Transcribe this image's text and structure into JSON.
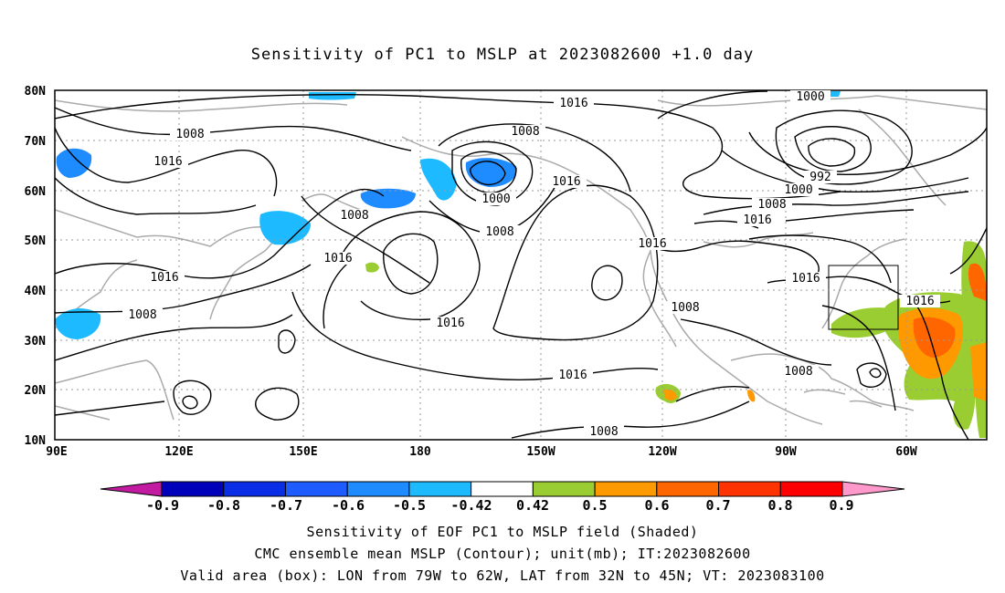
{
  "title": "Sensitivity of PC1 to MSLP at 2023082600 +1.0 day",
  "axes": {
    "lat_labels": [
      "80N",
      "70N",
      "60N",
      "50N",
      "40N",
      "30N",
      "20N",
      "10N"
    ],
    "lon_labels": [
      "90E",
      "120E",
      "150E",
      "180",
      "150W",
      "120W",
      "90W",
      "60W"
    ]
  },
  "contour_labels": [
    "1016",
    "1000",
    "1008",
    "1016",
    "1008",
    "1016",
    "992",
    "1000",
    "1008",
    "1008",
    "1016",
    "1000",
    "1008",
    "1016",
    "1016",
    "1016",
    "1016",
    "1016",
    "1008",
    "1008",
    "1008",
    "1016",
    "1008"
  ],
  "colorbar": {
    "ticks": [
      "-0.9",
      "-0.8",
      "-0.7",
      "-0.6",
      "-0.5",
      "-0.42",
      "0.42",
      "0.5",
      "0.6",
      "0.7",
      "0.8",
      "0.9"
    ],
    "colors": [
      "#0000bb",
      "#0a2de6",
      "#1e5cff",
      "#1e8cff",
      "#1ebaff",
      "#ffffff",
      "#9acd32",
      "#ff9900",
      "#ff6600",
      "#ff3300",
      "#ff0000"
    ],
    "low_extreme_color": "#c21aa0",
    "high_extreme_color": "#ff99cc"
  },
  "captions": [
    "Sensitivity of EOF PC1 to MSLP field (Shaded)",
    "CMC ensemble mean MSLP (Contour); unit(mb); IT:2023082600",
    "Valid area (box): LON from 79W to 62W, LAT from 32N to 45N; VT: 2023083100"
  ]
}
